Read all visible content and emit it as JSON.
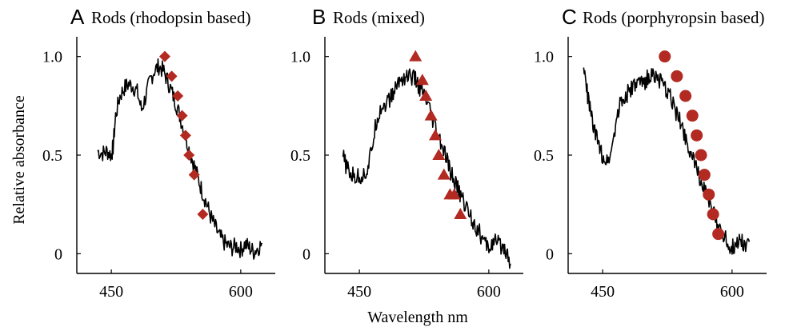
{
  "figure": {
    "ylabel": "Relative absorbance",
    "xlabel": "Wavelength nm"
  },
  "chart_data": [
    {
      "type": "line",
      "panel_letter": "A",
      "title": "Rods (rhodopsin based)",
      "xlim": [
        410,
        640
      ],
      "ylim": [
        -0.1,
        1.1
      ],
      "xticks": [
        450,
        600
      ],
      "yticks": [
        0,
        0.5,
        1.0
      ],
      "ytick_labels": [
        "0",
        "0.5",
        "1.0"
      ],
      "series": [
        {
          "kind": "spectrum",
          "x": [
            434,
            440,
            445,
            450,
            452,
            455,
            460,
            465,
            470,
            475,
            480,
            485,
            490,
            495,
            500,
            505,
            510,
            515,
            520,
            525,
            530,
            535,
            540,
            545,
            550,
            555,
            560,
            565,
            570,
            575,
            580,
            585,
            590,
            595,
            600,
            605,
            610,
            615,
            620,
            625
          ],
          "y": [
            0.52,
            0.51,
            0.52,
            0.5,
            0.54,
            0.7,
            0.8,
            0.84,
            0.86,
            0.85,
            0.82,
            0.73,
            0.8,
            0.88,
            0.93,
            0.95,
            0.93,
            0.88,
            0.82,
            0.76,
            0.69,
            0.61,
            0.53,
            0.46,
            0.39,
            0.32,
            0.26,
            0.19,
            0.14,
            0.09,
            0.06,
            0.04,
            0.03,
            0.04,
            0.02,
            0.05,
            0.03,
            0.01,
            0.03,
            0.05
          ],
          "color": "#000000"
        },
        {
          "kind": "markers",
          "marker": "diamond",
          "x": [
            512,
            520,
            527,
            532,
            536,
            540,
            546,
            556
          ],
          "y": [
            1.0,
            0.9,
            0.8,
            0.7,
            0.6,
            0.5,
            0.4,
            0.2
          ],
          "color": "#b22a22"
        }
      ]
    },
    {
      "type": "line",
      "panel_letter": "B",
      "title": "Rods (mixed)",
      "xlim": [
        410,
        640
      ],
      "ylim": [
        -0.1,
        1.1
      ],
      "xticks": [
        450,
        600
      ],
      "yticks": [
        0,
        0.5,
        1.0
      ],
      "ytick_labels": [
        "0",
        "0.5",
        "1.0"
      ],
      "series": [
        {
          "kind": "spectrum",
          "x": [
            431,
            436,
            440,
            445,
            450,
            455,
            460,
            465,
            470,
            475,
            480,
            485,
            490,
            495,
            500,
            505,
            510,
            515,
            520,
            525,
            530,
            535,
            540,
            545,
            550,
            555,
            560,
            565,
            570,
            575,
            580,
            585,
            590,
            595,
            600,
            605,
            610,
            615,
            620,
            625
          ],
          "y": [
            0.49,
            0.43,
            0.4,
            0.39,
            0.39,
            0.4,
            0.43,
            0.55,
            0.68,
            0.74,
            0.76,
            0.78,
            0.82,
            0.87,
            0.89,
            0.9,
            0.9,
            0.88,
            0.84,
            0.8,
            0.74,
            0.67,
            0.61,
            0.55,
            0.49,
            0.42,
            0.37,
            0.32,
            0.27,
            0.23,
            0.18,
            0.14,
            0.1,
            0.05,
            0.03,
            0.06,
            0.05,
            0.04,
            0.02,
            -0.05
          ],
          "color": "#000000"
        },
        {
          "kind": "markers",
          "marker": "triangle",
          "x": [
            515,
            523,
            527,
            533,
            538,
            542,
            548,
            555,
            560,
            567
          ],
          "y": [
            1.0,
            0.88,
            0.8,
            0.7,
            0.6,
            0.5,
            0.4,
            0.3,
            0.3,
            0.2
          ],
          "color": "#b22a22"
        }
      ]
    },
    {
      "type": "line",
      "panel_letter": "C",
      "title": "Rods (porphyropsin based)",
      "xlim": [
        410,
        640
      ],
      "ylim": [
        -0.1,
        1.1
      ],
      "xticks": [
        450,
        600
      ],
      "yticks": [
        0,
        0.5,
        1.0
      ],
      "ytick_labels": [
        "0",
        "0.5",
        "1.0"
      ],
      "series": [
        {
          "kind": "spectrum",
          "x": [
            428,
            432,
            436,
            440,
            445,
            450,
            455,
            460,
            465,
            470,
            475,
            480,
            485,
            490,
            495,
            500,
            505,
            510,
            515,
            520,
            525,
            530,
            535,
            540,
            545,
            550,
            555,
            560,
            565,
            570,
            575,
            580,
            585,
            590,
            595,
            600,
            605,
            610,
            615,
            620
          ],
          "y": [
            0.94,
            0.82,
            0.72,
            0.63,
            0.55,
            0.5,
            0.47,
            0.52,
            0.66,
            0.76,
            0.79,
            0.82,
            0.84,
            0.86,
            0.86,
            0.88,
            0.9,
            0.91,
            0.88,
            0.85,
            0.82,
            0.78,
            0.72,
            0.67,
            0.61,
            0.54,
            0.47,
            0.42,
            0.36,
            0.3,
            0.24,
            0.19,
            0.14,
            0.1,
            0.05,
            0.03,
            0.05,
            0.08,
            0.04,
            0.06
          ],
          "color": "#000000"
        },
        {
          "kind": "markers",
          "marker": "circle",
          "x": [
            522,
            536,
            546,
            554,
            559,
            564,
            568,
            573,
            578,
            584
          ],
          "y": [
            1.0,
            0.9,
            0.8,
            0.7,
            0.6,
            0.5,
            0.4,
            0.3,
            0.2,
            0.1
          ],
          "color": "#b22a22"
        }
      ]
    }
  ]
}
